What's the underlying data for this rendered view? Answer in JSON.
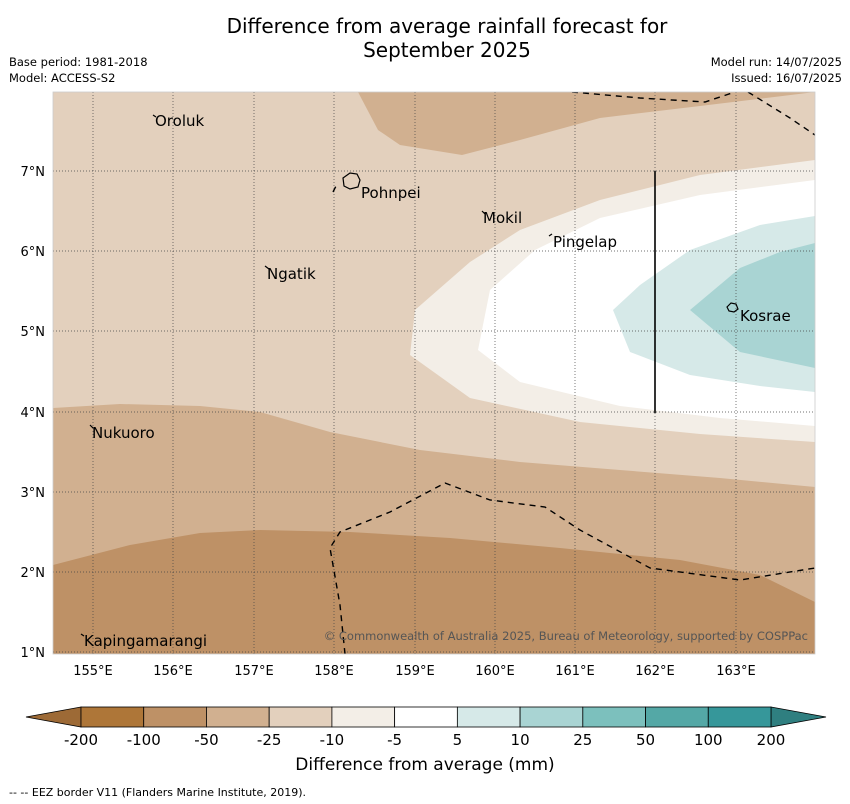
{
  "title_line1": "Difference from average rainfall forecast for",
  "title_line2": "September 2025",
  "meta_left": [
    "Base period: 1981-2018",
    "Model: ACCESS-S2"
  ],
  "meta_right": [
    "Model run: 14/07/2025",
    "Issued: 16/07/2025"
  ],
  "x_ticks": [
    "155°E",
    "156°E",
    "157°E",
    "158°E",
    "159°E",
    "160°E",
    "161°E",
    "162°E",
    "163°E"
  ],
  "y_ticks": [
    "7°N",
    "6°N",
    "5°N",
    "4°N",
    "3°N",
    "2°N",
    "1°N"
  ],
  "places": [
    {
      "name": "Oroluk"
    },
    {
      "name": "Pohnpei"
    },
    {
      "name": "Mokil"
    },
    {
      "name": "Pingelap"
    },
    {
      "name": "Ngatik"
    },
    {
      "name": "Kosrae"
    },
    {
      "name": "Nukuoro"
    },
    {
      "name": "Kapingamarangi"
    }
  ],
  "copyright": "© Commonwealth of Australia 2025, Bureau of Meteorology, supported by COSPPac",
  "colorbar": {
    "labels": [
      "-200",
      "-100",
      "-50",
      "-25",
      "-10",
      "-5",
      "5",
      "10",
      "25",
      "50",
      "100",
      "200"
    ],
    "colors": [
      "#ae7638",
      "#be9166",
      "#d1b090",
      "#e3d0bd",
      "#f3eee7",
      "#ffffff",
      "#d6e9e8",
      "#a9d4d3",
      "#7cc0bd",
      "#54a8a6",
      "#36979a"
    ],
    "under_color": "#9d6a36",
    "over_color": "#2f7f80",
    "title": "Difference from average (mm)"
  },
  "footer": "-- -- EEZ border V11 (Flanders Marine Institute, 2019)."
}
